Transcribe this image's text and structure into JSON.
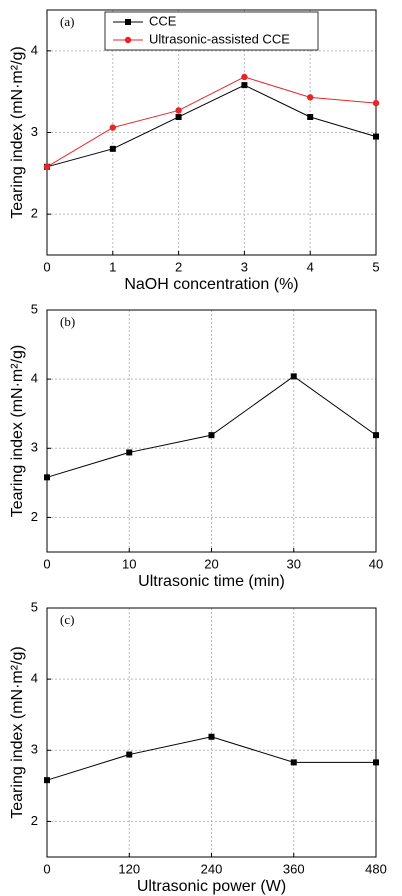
{
  "chart_data": [
    {
      "type": "line",
      "annotation": "(a)",
      "xlabel": "NaOH concentration (%)",
      "ylabel": "Tearing index (mN·m²/g)",
      "x": [
        0,
        1,
        2,
        3,
        4,
        5
      ],
      "xlim": [
        0,
        5
      ],
      "xticks": [
        0,
        1,
        2,
        3,
        4,
        5
      ],
      "ylim": [
        1.5,
        4.5
      ],
      "yticks": [
        2,
        3,
        4
      ],
      "grid": true,
      "legend": "top-left",
      "series": [
        {
          "name": "CCE",
          "color": "#000000",
          "marker": "square",
          "values": [
            2.58,
            2.8,
            3.19,
            3.58,
            3.19,
            2.95
          ]
        },
        {
          "name": "Ultrasonic-assisted CCE",
          "color": "#e8262a",
          "marker": "circle",
          "values": [
            2.58,
            3.06,
            3.27,
            3.68,
            3.43,
            3.36
          ]
        }
      ]
    },
    {
      "type": "line",
      "annotation": "(b)",
      "xlabel": "Ultrasonic time (min)",
      "ylabel": "Tearing index (mN·m²/g)",
      "x": [
        0,
        10,
        20,
        30,
        40
      ],
      "xlim": [
        0,
        40
      ],
      "xticks": [
        0,
        10,
        20,
        30,
        40
      ],
      "ylim": [
        1.5,
        5
      ],
      "yticks": [
        2,
        3,
        4,
        5
      ],
      "grid": true,
      "series": [
        {
          "color": "#000000",
          "marker": "square",
          "values": [
            2.58,
            2.94,
            3.19,
            4.04,
            3.19
          ]
        }
      ]
    },
    {
      "type": "line",
      "annotation": "(c)",
      "xlabel": "Ultrasonic power (W)",
      "ylabel": "Tearing index (mN·m²/g)",
      "x": [
        0,
        120,
        240,
        360,
        480
      ],
      "xlim": [
        0,
        480
      ],
      "xticks": [
        0,
        120,
        240,
        360,
        480
      ],
      "ylim": [
        1.5,
        5
      ],
      "yticks": [
        2,
        3,
        4,
        5
      ],
      "grid": true,
      "series": [
        {
          "color": "#000000",
          "marker": "square",
          "values": [
            2.58,
            2.94,
            3.19,
            2.83,
            2.83
          ]
        }
      ]
    }
  ]
}
